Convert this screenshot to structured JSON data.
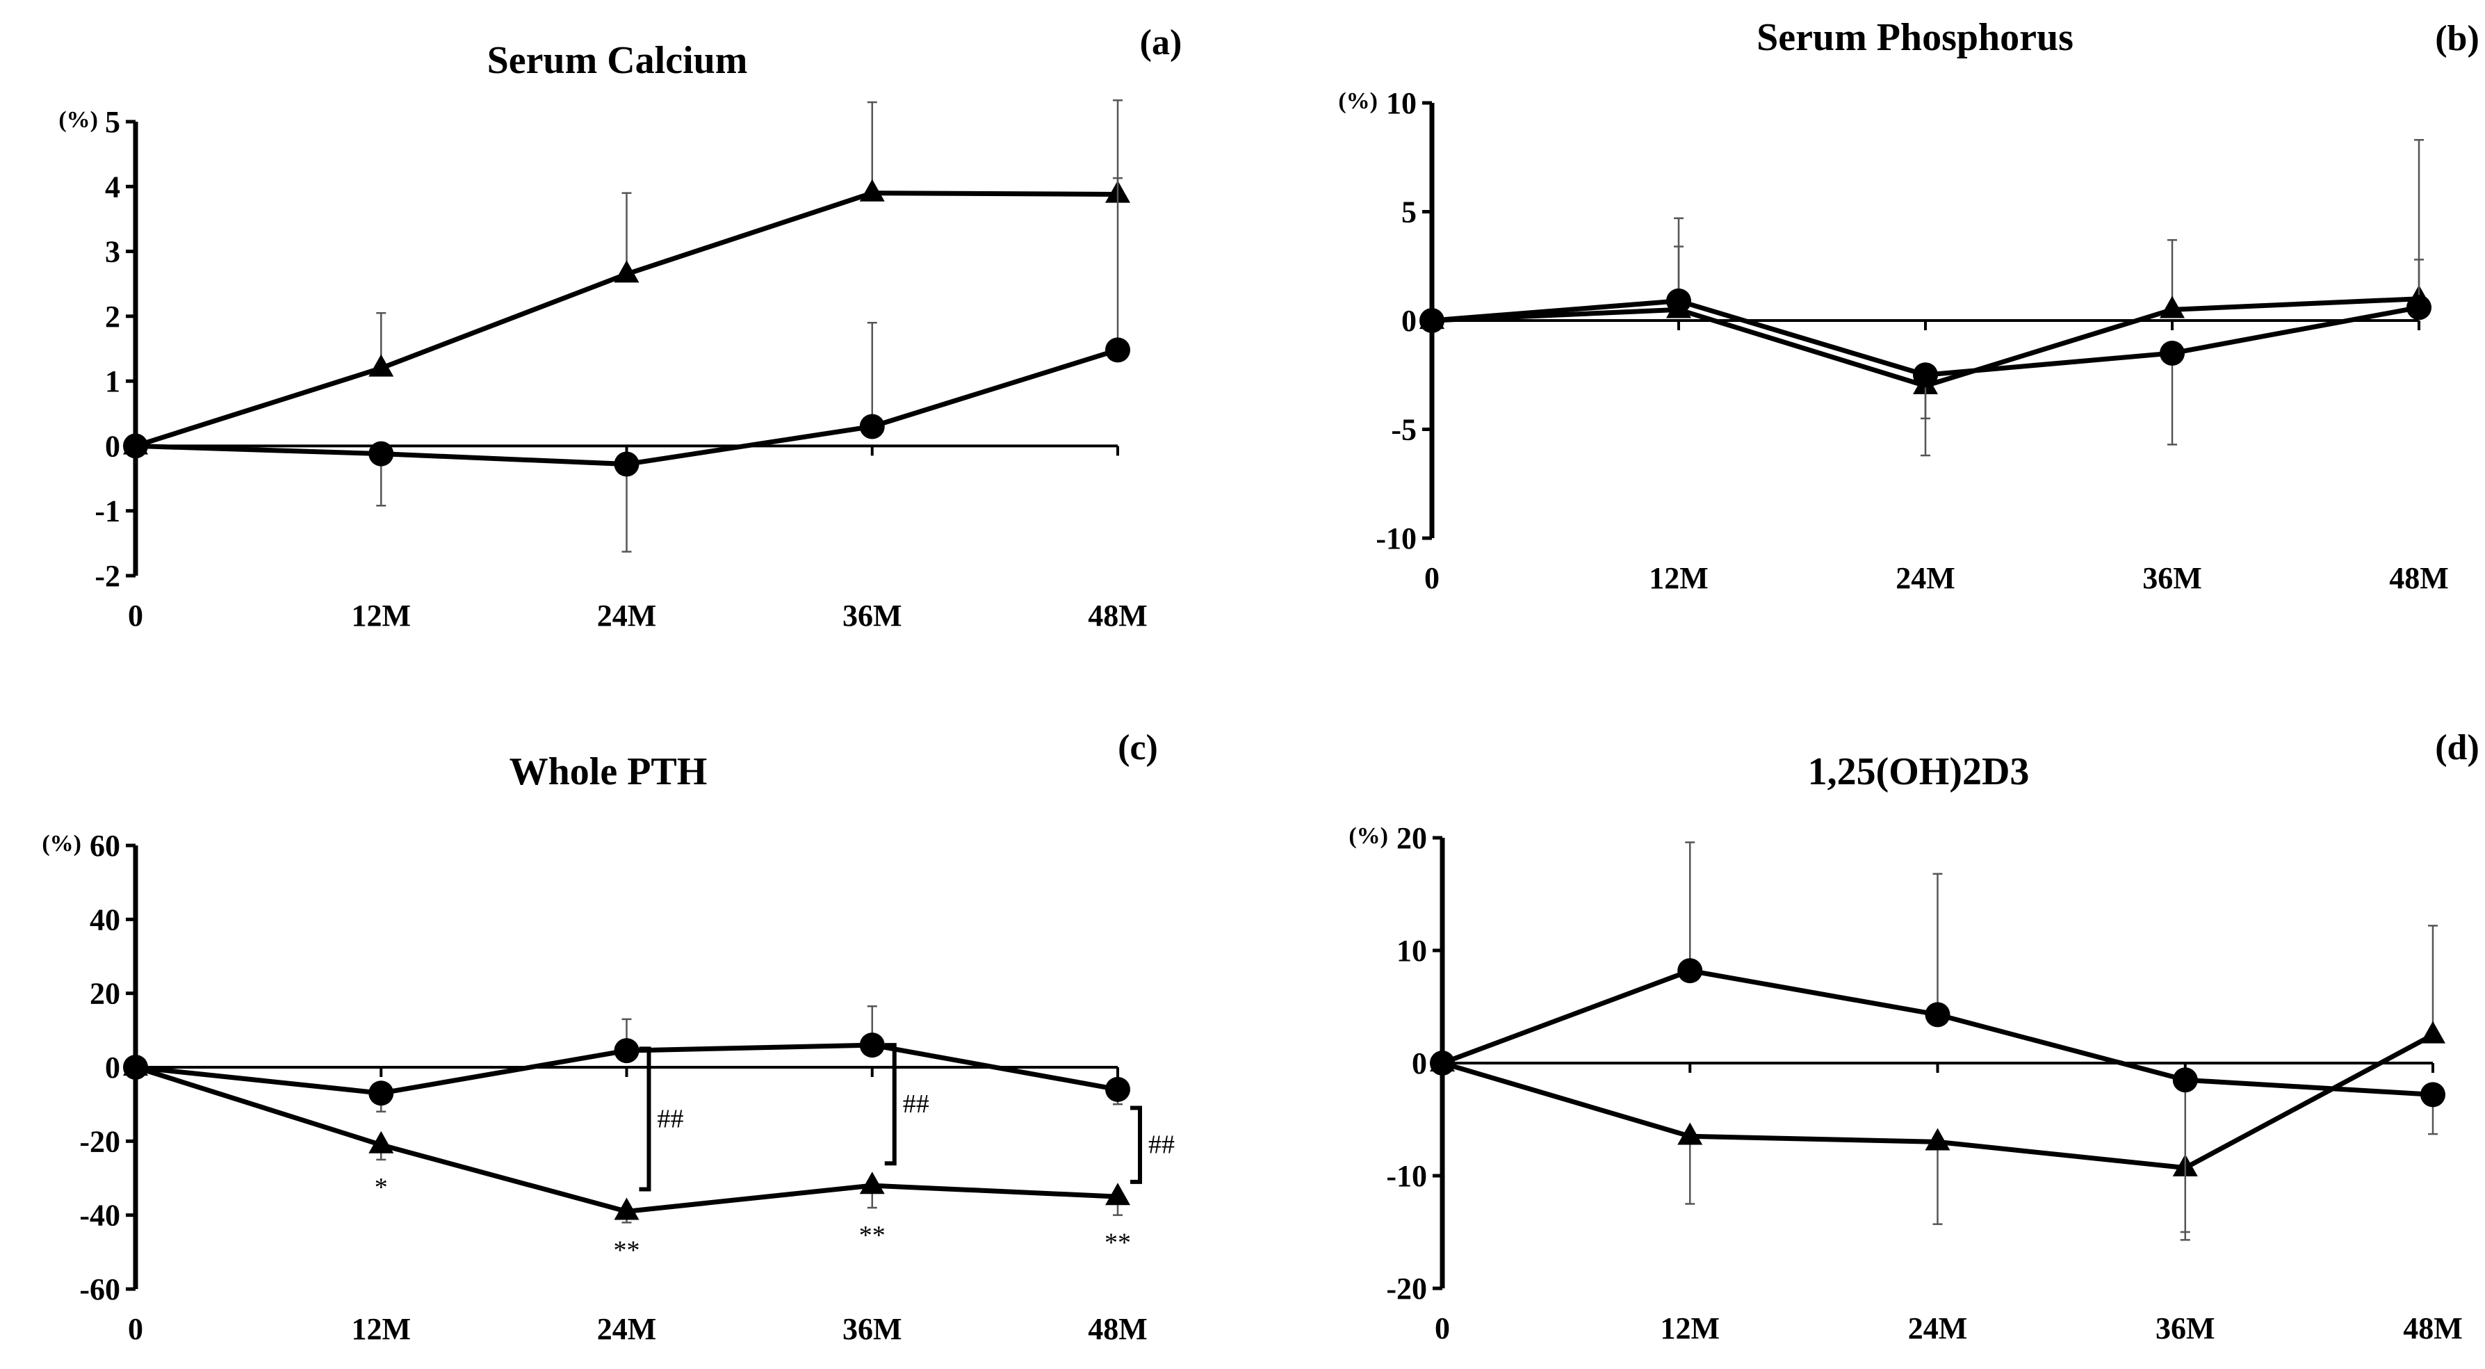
{
  "figure": {
    "panels": [
      {
        "id": "a",
        "chart_data": {
          "type": "line",
          "title": "Serum Calcium",
          "panel_label": "(a)",
          "unit_label": "(%)",
          "categories": [
            "0",
            "12M",
            "24M",
            "36M",
            "48M"
          ],
          "ylim": [
            -2,
            5
          ],
          "yticks": [
            -2,
            -1,
            0,
            1,
            2,
            3,
            4,
            5
          ],
          "error_bar_direction": "outward",
          "series": [
            {
              "name": "triangle",
              "marker": "triangle",
              "values": [
                0,
                1.2,
                2.65,
                3.9,
                3.88
              ],
              "errors": [
                0,
                0.85,
                1.25,
                1.4,
                1.45
              ]
            },
            {
              "name": "circle",
              "marker": "circle",
              "values": [
                0,
                -0.12,
                -0.28,
                0.3,
                1.48
              ],
              "errors": [
                0,
                0.8,
                1.35,
                1.6,
                2.65
              ]
            }
          ],
          "annotations": []
        }
      },
      {
        "id": "b",
        "chart_data": {
          "type": "line",
          "title": "Serum Phosphorus",
          "panel_label": "(b)",
          "unit_label": "(%)",
          "categories": [
            "0",
            "12M",
            "24M",
            "36M",
            "48M"
          ],
          "ylim": [
            -10,
            10
          ],
          "yticks": [
            -10,
            -5,
            0,
            5,
            10
          ],
          "error_bar_direction": "outward",
          "series": [
            {
              "name": "triangle",
              "marker": "triangle",
              "values": [
                0,
                0.5,
                -3.0,
                0.5,
                1.0
              ],
              "errors": [
                0,
                2.9,
                3.2,
                3.2,
                1.8
              ]
            },
            {
              "name": "circle",
              "marker": "circle",
              "values": [
                0,
                0.9,
                -2.5,
                -1.5,
                0.6
              ],
              "errors": [
                0,
                3.8,
                2.0,
                4.2,
                7.7
              ]
            }
          ],
          "annotations": []
        }
      },
      {
        "id": "c",
        "chart_data": {
          "type": "line",
          "title": "Whole PTH",
          "panel_label": "(c)",
          "unit_label": "(%)",
          "categories": [
            "0",
            "12M",
            "24M",
            "36M",
            "48M"
          ],
          "ylim": [
            -60,
            60
          ],
          "yticks": [
            -60,
            -40,
            -20,
            0,
            20,
            40,
            60
          ],
          "error_bar_direction": "outward",
          "series": [
            {
              "name": "triangle",
              "marker": "triangle",
              "values": [
                0,
                -21,
                -39,
                -32,
                -35
              ],
              "errors": [
                0,
                4,
                3,
                6,
                5
              ]
            },
            {
              "name": "circle",
              "marker": "circle",
              "values": [
                0,
                -7,
                4.5,
                6,
                -6
              ],
              "errors": [
                0,
                5,
                8.5,
                10.5,
                4
              ]
            }
          ],
          "annotations": [
            {
              "text": "*",
              "category": "12M"
            },
            {
              "text": "**",
              "category": "24M"
            },
            {
              "text": "**",
              "category": "36M"
            },
            {
              "text": "**",
              "category": "48M"
            },
            {
              "text": "##",
              "category": "24M",
              "type": "bracket",
              "from": 5,
              "to": -33
            },
            {
              "text": "##",
              "category": "36M",
              "type": "bracket",
              "from": 6,
              "to": -26
            },
            {
              "text": "##",
              "category": "48M",
              "type": "bracket",
              "from": -11,
              "to": -31
            }
          ]
        }
      },
      {
        "id": "d",
        "chart_data": {
          "type": "line",
          "title": "1,25(OH)2D3",
          "panel_label": "(d)",
          "unit_label": "(%)",
          "categories": [
            "0",
            "12M",
            "24M",
            "36M",
            "48M"
          ],
          "ylim": [
            -20,
            20
          ],
          "yticks": [
            -20,
            -10,
            0,
            10,
            20
          ],
          "error_bar_direction": "outward",
          "series": [
            {
              "name": "triangle",
              "marker": "triangle",
              "values": [
                0,
                -6.5,
                -7.0,
                -9.3,
                2.5
              ],
              "errors": [
                0,
                6.0,
                7.3,
                6.4,
                9.7
              ]
            },
            {
              "name": "circle",
              "marker": "circle",
              "values": [
                0,
                8.2,
                4.3,
                -1.5,
                -2.8
              ],
              "errors": [
                0,
                11.4,
                12.5,
                13.5,
                3.5
              ]
            }
          ],
          "annotations": []
        }
      }
    ]
  }
}
